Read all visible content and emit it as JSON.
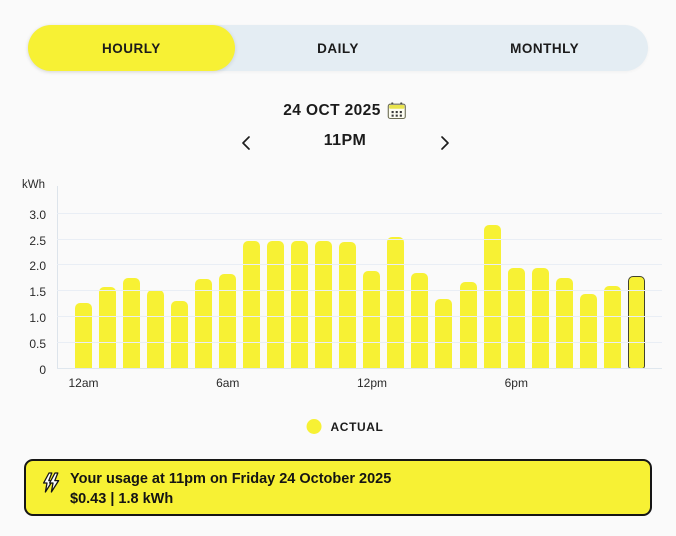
{
  "colors": {
    "accent_yellow": "#f7f134",
    "tab_container": "#e4edf3",
    "selected_bar_outline": "#42422f",
    "text": "#1b1b1b",
    "gridline": "#e9eef5"
  },
  "tabs": {
    "items": [
      {
        "label": "HOURLY",
        "selected": true
      },
      {
        "label": "DAILY",
        "selected": false
      },
      {
        "label": "MONTHLY",
        "selected": false
      }
    ]
  },
  "date_nav": {
    "date": "24 OCT 2025",
    "time": "11PM"
  },
  "chart_data": {
    "type": "bar",
    "unit_label": "kWh",
    "x": [
      "12am",
      "1am",
      "2am",
      "3am",
      "4am",
      "5am",
      "6am",
      "7am",
      "8am",
      "9am",
      "10am",
      "11am",
      "12pm",
      "1pm",
      "2pm",
      "3pm",
      "4pm",
      "5pm",
      "6pm",
      "7pm",
      "8pm",
      "9pm",
      "10pm",
      "11pm"
    ],
    "values": [
      1.27,
      1.59,
      1.76,
      1.52,
      1.31,
      1.74,
      1.83,
      2.48,
      2.48,
      2.48,
      2.48,
      2.45,
      1.9,
      2.55,
      1.86,
      1.35,
      1.68,
      2.78,
      1.95,
      1.95,
      1.76,
      1.45,
      1.6,
      1.8
    ],
    "selected_index": 23,
    "selected_value_kwh": 1.8,
    "yticks": [
      0,
      0.5,
      1.0,
      1.5,
      2.0,
      2.5,
      3.0
    ],
    "ylim": [
      0,
      3.0
    ],
    "x_ticks": [
      {
        "index": 0,
        "label": "12am"
      },
      {
        "index": 6,
        "label": "6am"
      },
      {
        "index": 12,
        "label": "12pm"
      },
      {
        "index": 18,
        "label": "6pm"
      }
    ],
    "grid": "horizontal",
    "legend_position": "bottom-center",
    "legend": [
      {
        "label": "ACTUAL",
        "color": "#f7f134"
      }
    ],
    "bar_color": "#f7f134"
  },
  "summary": {
    "line1": "Your usage at 11pm on Friday 24 October 2025",
    "line2": "$0.43 | 1.8 kWh"
  }
}
